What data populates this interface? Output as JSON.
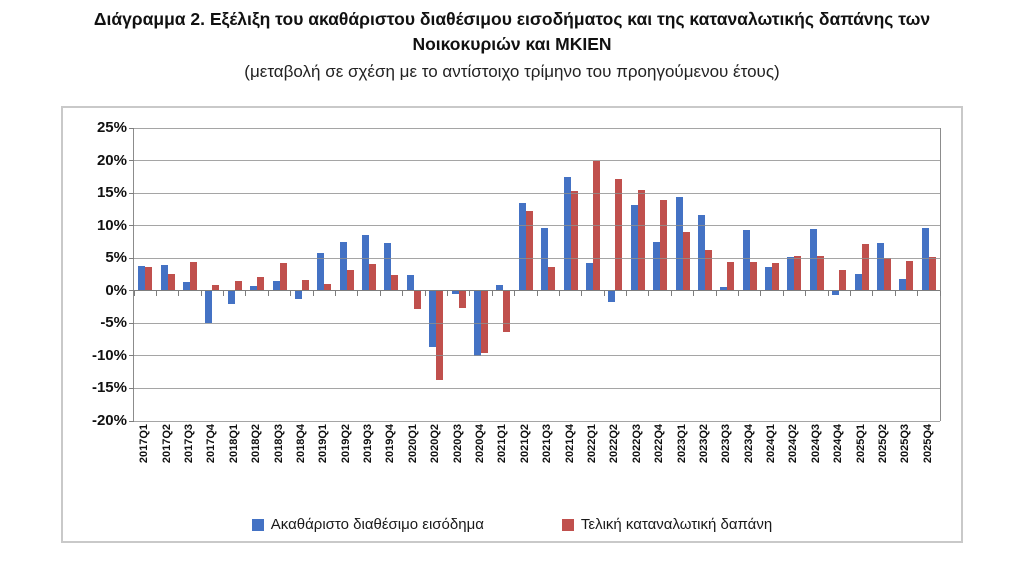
{
  "page": {
    "title": "Διάγραμμα 2. Εξέλιξη του ακαθάριστου διαθέσιμου εισοδήματος και της καταναλωτικής δαπάνης των Νοικοκυριών και ΜΚΙΕΝ",
    "subtitle": "(μεταβολή σε σχέση με το αντίστοιχο τρίμηνο του προηγούμενου έτους)"
  },
  "colors": {
    "income": "#4472C4",
    "consumption": "#C0504D",
    "gridline": "#8F8F8F",
    "axis": "#7D7D7D",
    "chart_border": "#C9C9C9"
  },
  "chart_data": {
    "type": "bar",
    "title": "Διάγραμμα 2. Εξέλιξη του ακαθάριστου διαθέσιμου εισοδήματος και της καταναλωτικής δαπάνης των Νοικοκυριών και ΜΚΙΕΝ",
    "subtitle": "(μεταβολή σε σχέση με το αντίστοιχο τρίμηνο του προηγούμενου έτους)",
    "categories": [
      "2017Q1",
      "2017Q2",
      "2017Q3",
      "2017Q4",
      "2018Q1",
      "2018Q2",
      "2018Q3",
      "2018Q4",
      "2019Q1",
      "2019Q2",
      "2019Q3",
      "2019Q4",
      "2020Q1",
      "2020Q2",
      "2020Q3",
      "2020Q4",
      "2021Q1",
      "2021Q2",
      "2021Q3",
      "2021Q4",
      "2022Q1",
      "2022Q2",
      "2022Q3",
      "2022Q4",
      "2023Q1",
      "2023Q2",
      "2023Q3",
      "2023Q4",
      "2024Q1",
      "2024Q2",
      "2024Q3",
      "2024Q4",
      "2025Q1",
      "2025Q2",
      "2025Q3",
      "2025Q4"
    ],
    "series": [
      {
        "name": "Ακαθάριστο διαθέσιμο εισόδημα",
        "color_key": "income",
        "values": [
          3.8,
          3.9,
          1.3,
          -4.9,
          -2.1,
          0.8,
          1.5,
          -1.2,
          5.8,
          7.5,
          8.6,
          7.3,
          2.5,
          -8.7,
          -0.5,
          -10.0,
          0.9,
          13.5,
          9.7,
          17.4,
          4.3,
          -1.8,
          13.1,
          7.5,
          14.4,
          11.6,
          0.6,
          9.3,
          3.7,
          5.2,
          9.5,
          -0.6,
          2.6,
          7.3,
          1.8,
          9.7
        ]
      },
      {
        "name": "Τελική καταναλωτική δαπάνη",
        "color_key": "consumption",
        "values": [
          3.7,
          2.6,
          4.4,
          0.9,
          1.5,
          2.1,
          4.3,
          1.7,
          1.0,
          3.2,
          4.1,
          2.4,
          -2.8,
          -13.7,
          -2.6,
          -9.6,
          -6.4,
          12.2,
          3.7,
          15.3,
          19.9,
          17.2,
          15.5,
          14.0,
          9.1,
          6.3,
          4.4,
          4.4,
          4.2,
          5.4,
          5.3,
          3.2,
          7.2,
          5.0,
          4.5,
          5.2
        ]
      }
    ],
    "ylim": [
      -20,
      25
    ],
    "ytick_step": 5,
    "ytick_labels": [
      "25%",
      "20%",
      "15%",
      "10%",
      "5%",
      "0%",
      "-5%",
      "-10%",
      "-15%",
      "-20%"
    ],
    "grid": true,
    "legend_position": "bottom"
  }
}
